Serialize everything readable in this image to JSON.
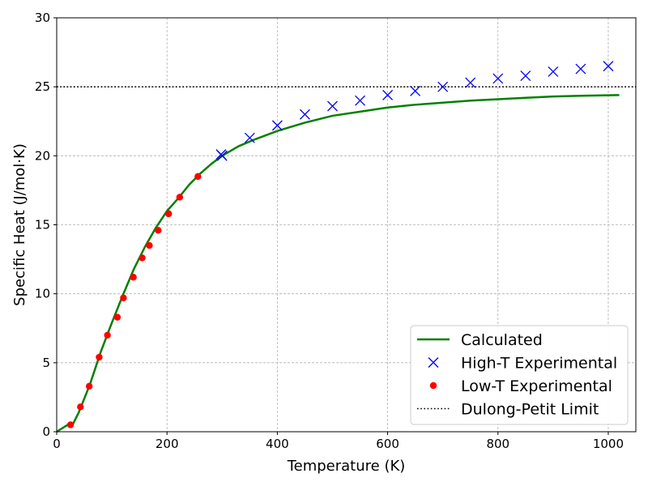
{
  "chart_data": {
    "type": "line",
    "title": "",
    "xlabel": "Temperature (K)",
    "ylabel": "Specific Heat (J/mol·K)",
    "xlim": [
      0,
      1050
    ],
    "ylim": [
      0,
      30
    ],
    "x_ticks": [
      0,
      200,
      400,
      600,
      800,
      1000
    ],
    "y_ticks": [
      0,
      5,
      10,
      15,
      20,
      25,
      30
    ],
    "grid": true,
    "legend_position": "bottom-right",
    "series": [
      {
        "name": "Calculated",
        "kind": "line",
        "color": "#008000",
        "x": [
          0,
          20,
          30,
          40,
          60,
          80,
          100,
          120,
          140,
          160,
          180,
          200,
          220,
          240,
          260,
          280,
          300,
          330,
          360,
          400,
          450,
          500,
          550,
          600,
          650,
          700,
          750,
          800,
          850,
          900,
          950,
          1020
        ],
        "y": [
          0,
          0.5,
          0.6,
          1.4,
          3.4,
          5.8,
          7.9,
          9.9,
          11.8,
          13.4,
          14.8,
          16.0,
          16.9,
          17.9,
          18.7,
          19.4,
          20.0,
          20.7,
          21.2,
          21.8,
          22.4,
          22.9,
          23.2,
          23.5,
          23.7,
          23.85,
          24.0,
          24.1,
          24.2,
          24.3,
          24.35,
          24.4
        ]
      },
      {
        "name": "High-T Experimental",
        "kind": "marker-x",
        "color": "#0000ff",
        "x": [
          298,
          300,
          350,
          400,
          450,
          500,
          550,
          600,
          650,
          700,
          750,
          800,
          850,
          900,
          950,
          1000
        ],
        "y": [
          20.1,
          20.0,
          21.3,
          22.2,
          23.0,
          23.6,
          24.0,
          24.4,
          24.7,
          25.0,
          25.3,
          25.6,
          25.8,
          26.1,
          26.3,
          26.5
        ]
      },
      {
        "name": "Low-T Experimental",
        "kind": "marker-dot",
        "color": "#ff0000",
        "x": [
          25,
          43,
          59,
          77,
          92,
          110,
          121,
          139,
          155,
          168,
          184,
          203,
          223,
          256
        ],
        "y": [
          0.5,
          1.8,
          3.3,
          5.4,
          7.0,
          8.3,
          9.7,
          11.2,
          12.6,
          13.5,
          14.6,
          15.8,
          17.0,
          18.5
        ]
      },
      {
        "name": "Dulong-Petit Limit",
        "kind": "hline",
        "color": "#000000",
        "y": 25
      }
    ]
  }
}
